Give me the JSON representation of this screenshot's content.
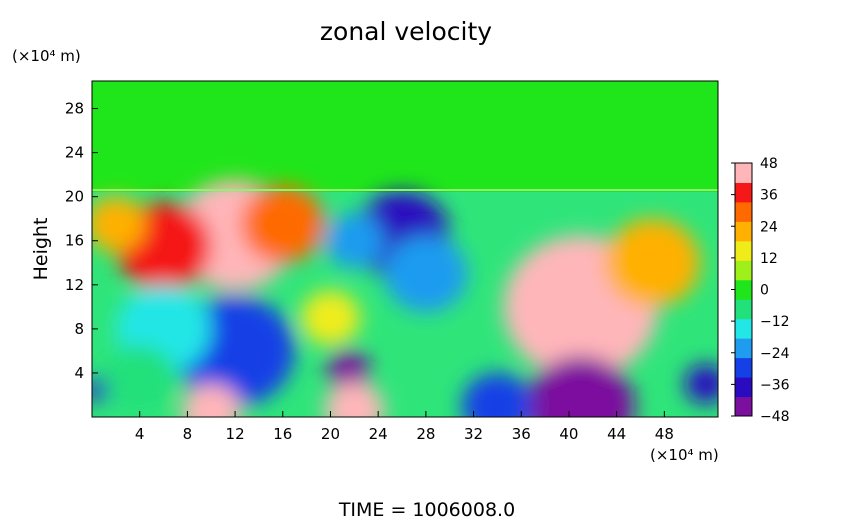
{
  "chart_data": {
    "type": "heatmap",
    "title": "zonal velocity",
    "ylabel": "Height",
    "xlabel": "",
    "x_unit": "(×10⁴ m)",
    "y_unit": "(×10⁴ m)",
    "xlim": [
      0,
      52.5
    ],
    "ylim": [
      0,
      30.5
    ],
    "x_ticks": [
      4,
      8,
      12,
      16,
      20,
      24,
      28,
      32,
      36,
      40,
      44,
      48
    ],
    "y_ticks": [
      4,
      8,
      12,
      16,
      20,
      24,
      28
    ],
    "colorbar": {
      "range": [
        -48,
        48
      ],
      "ticks": [
        48,
        36,
        24,
        12,
        0,
        -12,
        -24,
        -36,
        -48
      ],
      "colors": [
        "#7b0f9e",
        "#2b0bbf",
        "#1540e6",
        "#1f9bf0",
        "#23e6e6",
        "#22e07a",
        "#1fe61a",
        "#9ff01a",
        "#f0ec1a",
        "#ffb000",
        "#ff6a00",
        "#f51818",
        "#ffb6b9"
      ]
    },
    "field": [
      {
        "x": 26,
        "y": 25,
        "v": 0,
        "r": 40
      },
      {
        "x": 12,
        "y": 16.5,
        "v": 44,
        "r": 5
      },
      {
        "x": 6,
        "y": 15.5,
        "v": 36,
        "r": 4
      },
      {
        "x": 16,
        "y": 17.5,
        "v": 34,
        "r": 3.5
      },
      {
        "x": 26,
        "y": 16.5,
        "v": -40,
        "r": 4
      },
      {
        "x": 28,
        "y": 13,
        "v": -28,
        "r": 3.5
      },
      {
        "x": 22,
        "y": 16,
        "v": -24,
        "r": 2.5
      },
      {
        "x": 41,
        "y": 10,
        "v": 50,
        "r": 6.5
      },
      {
        "x": 47,
        "y": 14,
        "v": 20,
        "r": 4
      },
      {
        "x": 12,
        "y": 6,
        "v": -30,
        "r": 5
      },
      {
        "x": 6,
        "y": 8,
        "v": -18,
        "r": 4
      },
      {
        "x": 21.5,
        "y": 4.3,
        "v": -50,
        "r": 1.8
      },
      {
        "x": 41,
        "y": 1,
        "v": -52,
        "r": 4.5
      },
      {
        "x": 34,
        "y": 1,
        "v": -30,
        "r": 3
      },
      {
        "x": 10,
        "y": 0.5,
        "v": 48,
        "r": 2.5
      },
      {
        "x": 22,
        "y": 0.7,
        "v": 48,
        "r": 2.5
      },
      {
        "x": 51.5,
        "y": 3,
        "v": -44,
        "r": 1.8
      },
      {
        "x": 0.5,
        "y": 2.5,
        "v": -40,
        "r": 1.2
      },
      {
        "x": 4,
        "y": 3.5,
        "v": -8,
        "r": 3
      },
      {
        "x": 20,
        "y": 9,
        "v": 16,
        "r": 2.5
      },
      {
        "x": 2,
        "y": 17.5,
        "v": 20,
        "r": 2.5
      }
    ],
    "annotation": "TIME = 1006008.0"
  }
}
